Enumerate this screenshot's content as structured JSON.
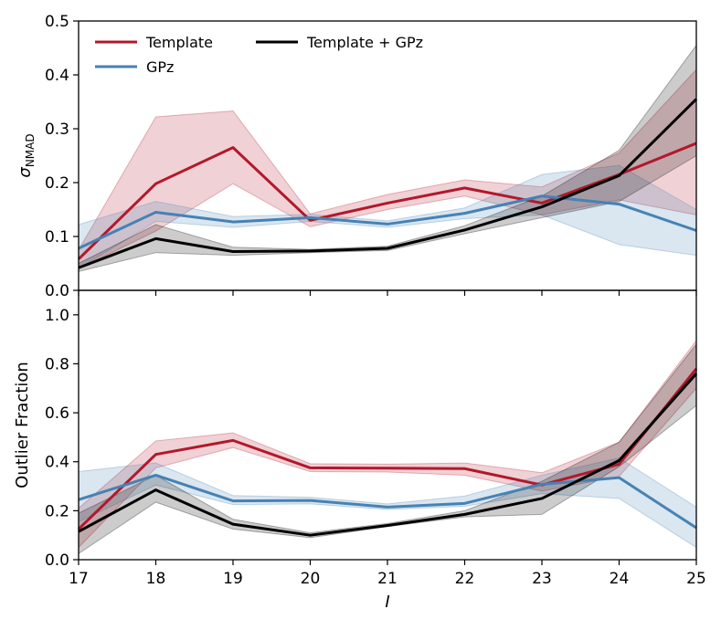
{
  "chart_data": [
    {
      "type": "line",
      "id": "top",
      "ylabel": "σNMAD",
      "ylabel_symbol": "σ",
      "ylabel_sub": "NMAD",
      "xlabel": "",
      "xlim": [
        17,
        25
      ],
      "ylim": [
        0.0,
        0.5
      ],
      "yticks": [
        0.0,
        0.1,
        0.2,
        0.3,
        0.4,
        0.5
      ],
      "ytick_labels": [
        "0.0",
        "0.1",
        "0.2",
        "0.3",
        "0.4",
        "0.5"
      ],
      "x": [
        17,
        18,
        19,
        20,
        21,
        22,
        23,
        24,
        25
      ],
      "series": [
        {
          "name": "Template",
          "color": "#b2182b",
          "values": [
            0.058,
            0.198,
            0.265,
            0.13,
            0.162,
            0.19,
            0.162,
            0.215,
            0.273
          ],
          "lower": [
            0.04,
            0.11,
            0.198,
            0.118,
            0.15,
            0.175,
            0.14,
            0.168,
            0.14
          ],
          "upper": [
            0.075,
            0.322,
            0.333,
            0.142,
            0.178,
            0.205,
            0.192,
            0.255,
            0.41
          ]
        },
        {
          "name": "GPz",
          "color": "#4682b4",
          "values": [
            0.078,
            0.145,
            0.127,
            0.135,
            0.123,
            0.143,
            0.175,
            0.16,
            0.111
          ],
          "lower": [
            0.04,
            0.128,
            0.117,
            0.128,
            0.117,
            0.133,
            0.14,
            0.085,
            0.065
          ],
          "upper": [
            0.122,
            0.165,
            0.137,
            0.141,
            0.129,
            0.153,
            0.215,
            0.232,
            0.15
          ]
        },
        {
          "name": "Template + GPz",
          "color": "#000000",
          "values": [
            0.042,
            0.096,
            0.072,
            0.073,
            0.078,
            0.112,
            0.155,
            0.213,
            0.355
          ],
          "lower": [
            0.035,
            0.07,
            0.065,
            0.07,
            0.074,
            0.105,
            0.135,
            0.165,
            0.25
          ],
          "upper": [
            0.05,
            0.122,
            0.08,
            0.076,
            0.082,
            0.12,
            0.175,
            0.26,
            0.455
          ]
        }
      ]
    },
    {
      "type": "line",
      "id": "bottom",
      "ylabel": "Outlier Fraction",
      "xlabel": "I",
      "xlim": [
        17,
        25
      ],
      "ylim": [
        0.0,
        1.1
      ],
      "yticks": [
        0.0,
        0.2,
        0.4,
        0.6,
        0.8,
        1.0
      ],
      "ytick_labels": [
        "0.0",
        "0.2",
        "0.4",
        "0.6",
        "0.8",
        "1.0"
      ],
      "xticks": [
        17,
        18,
        19,
        20,
        21,
        22,
        23,
        24,
        25
      ],
      "xtick_labels": [
        "17",
        "18",
        "19",
        "20",
        "21",
        "22",
        "23",
        "24",
        "25"
      ],
      "x": [
        17,
        18,
        19,
        20,
        21,
        22,
        23,
        24,
        25
      ],
      "series": [
        {
          "name": "Template",
          "color": "#b2182b",
          "values": [
            0.125,
            0.43,
            0.487,
            0.375,
            0.374,
            0.372,
            0.305,
            0.39,
            0.78
          ],
          "lower": [
            0.05,
            0.375,
            0.458,
            0.36,
            0.358,
            0.345,
            0.28,
            0.34,
            0.7
          ],
          "upper": [
            0.21,
            0.485,
            0.518,
            0.392,
            0.39,
            0.395,
            0.355,
            0.48,
            0.895
          ]
        },
        {
          "name": "GPz",
          "color": "#4682b4",
          "values": [
            0.245,
            0.345,
            0.24,
            0.242,
            0.215,
            0.23,
            0.308,
            0.335,
            0.13
          ],
          "lower": [
            0.155,
            0.305,
            0.225,
            0.228,
            0.205,
            0.218,
            0.27,
            0.25,
            0.05
          ],
          "upper": [
            0.36,
            0.395,
            0.262,
            0.255,
            0.228,
            0.26,
            0.345,
            0.415,
            0.215
          ]
        },
        {
          "name": "Template + GPz",
          "color": "#000000",
          "values": [
            0.115,
            0.285,
            0.145,
            0.1,
            0.14,
            0.185,
            0.25,
            0.405,
            0.76
          ],
          "lower": [
            0.025,
            0.235,
            0.125,
            0.09,
            0.135,
            0.175,
            0.185,
            0.38,
            0.63
          ],
          "upper": [
            0.19,
            0.345,
            0.165,
            0.11,
            0.148,
            0.2,
            0.32,
            0.48,
            0.88
          ]
        }
      ]
    }
  ],
  "legend": [
    {
      "label": "Template",
      "color": "#b2182b"
    },
    {
      "label": "GPz",
      "color": "#4682b4"
    },
    {
      "label": "Template + GPz",
      "color": "#000000"
    }
  ]
}
